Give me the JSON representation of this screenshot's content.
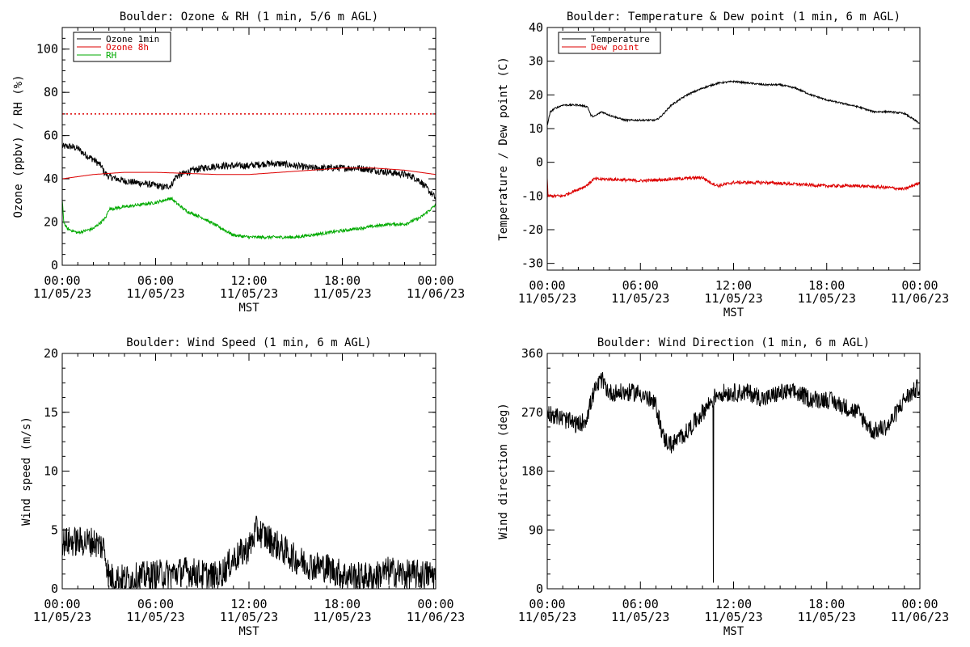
{
  "chart_data": [
    {
      "type": "line",
      "title": "Boulder: Ozone & RH (1 min, 5/6 m AGL)",
      "xlabel": "MST",
      "ylabel": "Ozone (ppbv) / RH (%)",
      "ylim": [
        0,
        110
      ],
      "yticks": [
        0,
        20,
        40,
        60,
        80,
        100
      ],
      "xlim": [
        0,
        24
      ],
      "xticks": [
        0,
        6,
        12,
        18,
        24
      ],
      "xtick_labels": [
        [
          "00:00",
          "11/05/23"
        ],
        [
          "06:00",
          "11/05/23"
        ],
        [
          "12:00",
          "11/05/23"
        ],
        [
          "18:00",
          "11/05/23"
        ],
        [
          "00:00",
          "11/06/23"
        ]
      ],
      "legend": "top-left",
      "reference_lines": [
        {
          "y": 70,
          "color": "#dd0000",
          "style": "dotted"
        }
      ],
      "series": [
        {
          "name": "Ozone 1min",
          "color": "#000000",
          "noise": 1.6,
          "x": [
            0,
            0.5,
            1,
            1.5,
            2,
            2.5,
            2.7,
            3,
            3.5,
            4,
            5,
            6,
            6.5,
            7,
            7.3,
            8,
            9,
            10,
            11,
            12,
            13,
            14,
            15,
            16,
            17,
            18,
            19,
            20,
            21,
            22,
            22.5,
            23,
            23.5,
            24
          ],
          "y": [
            55,
            55,
            54,
            51,
            49,
            46,
            43,
            41,
            40,
            39,
            38,
            37,
            36,
            37,
            41,
            43,
            45,
            46,
            46,
            46,
            47,
            47,
            46,
            45,
            45,
            45,
            45,
            44,
            43,
            42,
            41,
            39,
            35,
            31
          ]
        },
        {
          "name": "Ozone 8h",
          "color": "#dd0000",
          "noise": 0,
          "x": [
            0,
            2,
            4,
            6,
            8,
            10,
            12,
            14,
            16,
            18,
            20,
            22,
            24
          ],
          "y": [
            40,
            42,
            43,
            43,
            42.5,
            42,
            42,
            43,
            44,
            45,
            45,
            44,
            42
          ]
        },
        {
          "name": "RH",
          "color": "#00aa00",
          "noise": 0.7,
          "x": [
            0,
            0.1,
            0.3,
            1,
            2,
            2.5,
            2.8,
            3,
            4,
            5,
            6,
            6.5,
            7,
            7.3,
            8,
            9,
            10,
            11,
            12,
            13,
            14,
            15,
            16,
            17,
            18,
            19,
            20,
            21,
            22,
            23,
            23.7,
            24
          ],
          "y": [
            30,
            20,
            17,
            15,
            17,
            20,
            22,
            26,
            27,
            28,
            29,
            30,
            31,
            29,
            25,
            22,
            18,
            14,
            13,
            13,
            13,
            13,
            14,
            15,
            16,
            17,
            18,
            19,
            19,
            22,
            26,
            28
          ]
        }
      ]
    },
    {
      "type": "line",
      "title": "Boulder: Temperature & Dew point (1 min, 6 m AGL)",
      "xlabel": "MST",
      "ylabel": "Temperature / Dew point (C)",
      "ylim": [
        -32,
        40
      ],
      "yticks": [
        -30,
        -20,
        -10,
        0,
        10,
        20,
        30,
        40
      ],
      "xlim": [
        0,
        24
      ],
      "xticks": [
        0,
        6,
        12,
        18,
        24
      ],
      "xtick_labels": [
        [
          "00:00",
          "11/05/23"
        ],
        [
          "06:00",
          "11/05/23"
        ],
        [
          "12:00",
          "11/05/23"
        ],
        [
          "18:00",
          "11/05/23"
        ],
        [
          "00:00",
          "11/06/23"
        ]
      ],
      "legend": "top-left",
      "series": [
        {
          "name": "Temperature",
          "color": "#000000",
          "noise": 0.25,
          "x": [
            0,
            0.2,
            0.5,
            1,
            2,
            2.6,
            2.8,
            3,
            3.5,
            4,
            5,
            6,
            7,
            7.3,
            8,
            9,
            10,
            11,
            12,
            13,
            14,
            15,
            16,
            17,
            18,
            19,
            20,
            21,
            22,
            23,
            24
          ],
          "y": [
            11,
            15,
            16,
            17,
            17,
            16.5,
            14,
            13.5,
            15,
            14,
            12.5,
            12.5,
            12.5,
            13.5,
            17,
            20,
            22,
            23.5,
            24,
            23.5,
            23,
            23,
            22,
            20,
            18.5,
            17.5,
            16.5,
            15,
            15,
            14.5,
            11.5
          ]
        },
        {
          "name": "Dew point",
          "color": "#dd0000",
          "noise": 0.45,
          "x": [
            0,
            0.05,
            0.2,
            1,
            2,
            2.5,
            3,
            4,
            6,
            8,
            10,
            10.5,
            11,
            12,
            14,
            16,
            18,
            20,
            22,
            23,
            24
          ],
          "y": [
            -5,
            -10,
            -10,
            -10,
            -8,
            -7,
            -5,
            -5,
            -5.5,
            -5,
            -4.5,
            -6,
            -7,
            -6,
            -6,
            -6.5,
            -7,
            -7,
            -7.5,
            -8,
            -6
          ]
        }
      ]
    },
    {
      "type": "line",
      "title": "Boulder: Wind Speed (1 min, 6 m AGL)",
      "xlabel": "MST",
      "ylabel": "Wind speed (m/s)",
      "ylim": [
        0,
        20
      ],
      "yticks": [
        0,
        5,
        10,
        15,
        20
      ],
      "xlim": [
        0,
        24
      ],
      "xticks": [
        0,
        6,
        12,
        18,
        24
      ],
      "xtick_labels": [
        [
          "00:00",
          "11/05/23"
        ],
        [
          "06:00",
          "11/05/23"
        ],
        [
          "12:00",
          "11/05/23"
        ],
        [
          "18:00",
          "11/05/23"
        ],
        [
          "00:00",
          "11/06/23"
        ]
      ],
      "series": [
        {
          "name": "",
          "color": "#000000",
          "noise": 1.3,
          "x": [
            0,
            1,
            2,
            2.7,
            3,
            4,
            5,
            6,
            7,
            8,
            9,
            10,
            11,
            12,
            12.5,
            13,
            14,
            15,
            16,
            17,
            18,
            19,
            20,
            21,
            22,
            23,
            24
          ],
          "y": [
            4,
            4,
            4,
            3.5,
            1,
            0.8,
            1,
            1.2,
            1.3,
            1.5,
            1.2,
            1,
            2.5,
            3.5,
            5,
            4.5,
            3.5,
            2.5,
            2,
            1.8,
            1.2,
            1,
            1,
            1.5,
            1.2,
            1.2,
            1.2
          ]
        }
      ]
    },
    {
      "type": "line",
      "title": "Boulder: Wind Direction (1 min, 6 m AGL)",
      "xlabel": "MST",
      "ylabel": "Wind direction (deg)",
      "ylim": [
        0,
        360
      ],
      "yticks": [
        0,
        90,
        180,
        270,
        360
      ],
      "xlim": [
        0,
        24
      ],
      "xticks": [
        0,
        6,
        12,
        18,
        24
      ],
      "xtick_labels": [
        [
          "00:00",
          "11/05/23"
        ],
        [
          "06:00",
          "11/05/23"
        ],
        [
          "12:00",
          "11/05/23"
        ],
        [
          "18:00",
          "11/05/23"
        ],
        [
          "00:00",
          "11/06/23"
        ]
      ],
      "series": [
        {
          "name": "",
          "color": "#000000",
          "noise": 14,
          "x": [
            0,
            1,
            2,
            2.5,
            3,
            3.5,
            4,
            5,
            6,
            6.5,
            7,
            7.5,
            8,
            9,
            10,
            11,
            12,
            13,
            14,
            15,
            16,
            17,
            18,
            19,
            20,
            21,
            22,
            23,
            24
          ],
          "y": [
            270,
            260,
            250,
            260,
            300,
            320,
            300,
            300,
            300,
            290,
            280,
            230,
            220,
            240,
            270,
            300,
            300,
            300,
            290,
            300,
            300,
            290,
            290,
            280,
            270,
            240,
            250,
            290,
            310
          ]
        }
      ]
    }
  ]
}
